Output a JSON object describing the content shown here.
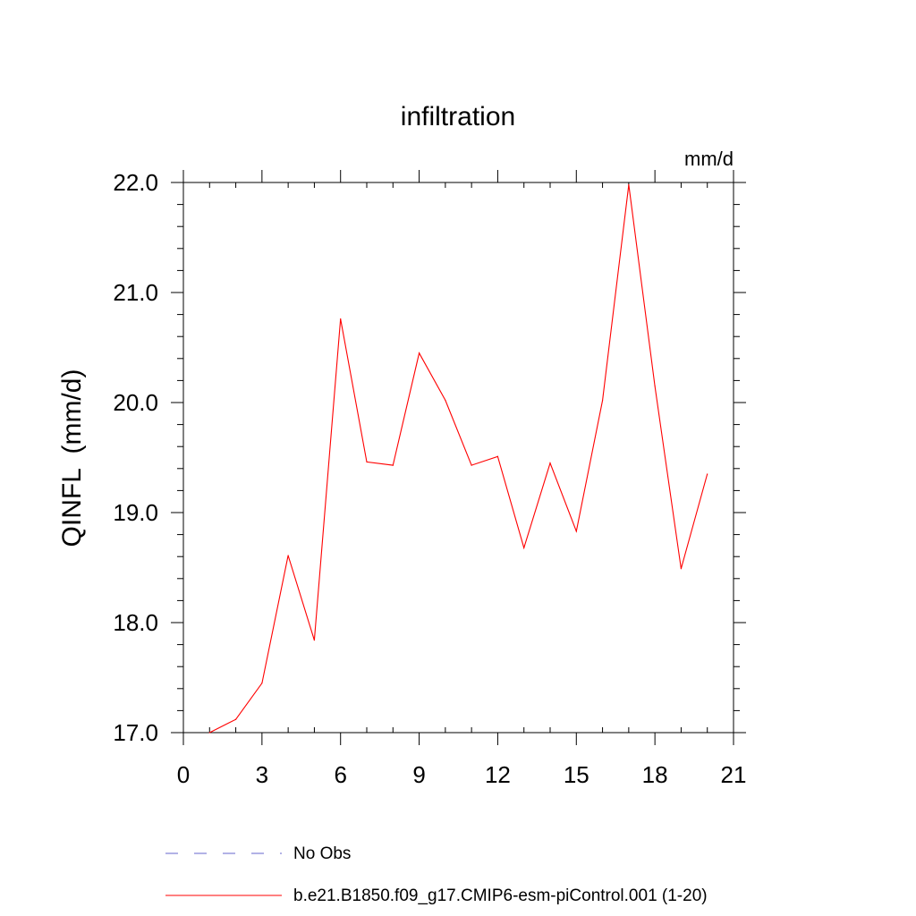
{
  "chart_data": {
    "type": "line",
    "title": "infiltration",
    "units_label": "mm/d",
    "ylabel": "QINFL  (mm/d)",
    "xlabel": "",
    "xlim": [
      0,
      21
    ],
    "ylim": [
      17.0,
      22.0
    ],
    "x_ticks": [
      "0",
      "3",
      "6",
      "9",
      "12",
      "15",
      "18",
      "21"
    ],
    "y_ticks": [
      "17.0",
      "18.0",
      "19.0",
      "20.0",
      "21.0",
      "22.0"
    ],
    "grid": false,
    "legend_placement": "bottom",
    "series": [
      {
        "name": "b.e21.B1850.f09_g17.CMIP6-esm-piControl.001 (1-20)",
        "color": "#ff0000",
        "style": "solid",
        "x": [
          1,
          2,
          3,
          4,
          5,
          6,
          7,
          8,
          9,
          10,
          11,
          12,
          13,
          14,
          15,
          16,
          17,
          18,
          19,
          20
        ],
        "y": [
          17.0,
          17.12,
          17.45,
          18.61,
          17.84,
          20.76,
          19.46,
          19.43,
          20.45,
          20.02,
          19.43,
          19.51,
          18.68,
          19.45,
          18.83,
          20.02,
          21.98,
          20.15,
          18.49,
          19.35
        ]
      }
    ],
    "legend": [
      {
        "label": "No Obs",
        "color": "#6666cc",
        "style": "dashed"
      },
      {
        "label": "b.e21.B1850.f09_g17.CMIP6-esm-piControl.001 (1-20)",
        "color": "#ff0000",
        "style": "solid"
      }
    ]
  }
}
